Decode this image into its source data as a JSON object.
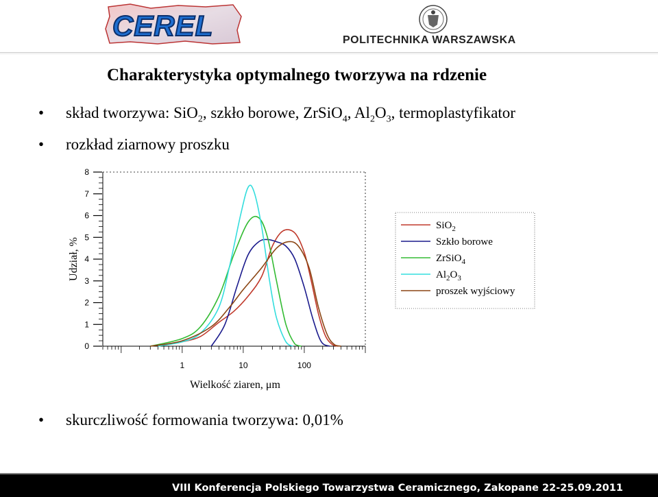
{
  "header": {
    "logo_left_text": "CEREL",
    "logo_right_text": "POLITECHNIKA WARSZAWSKA"
  },
  "slide": {
    "title": "Charakterystyka optymalnego tworzywa na rdzenie",
    "bullets": [
      {
        "text_parts": [
          "skład tworzywa: SiO",
          "2",
          ", szkło borowe, ZrSiO",
          "4",
          ", Al",
          "2",
          "O",
          "3",
          ", termoplastyfikator"
        ]
      },
      {
        "text": "rozkład ziarnowy proszku"
      },
      {
        "text": "skurczliwość formowania tworzywa: 0,01%"
      }
    ],
    "bullet_symbol": "•"
  },
  "chart_data": {
    "type": "line",
    "xlabel": "Wielkość ziaren,  μm",
    "ylabel": "Udział, %",
    "x_scale": "log",
    "xlim": [
      0.05,
      1000
    ],
    "ylim": [
      0,
      8
    ],
    "x_ticks": [
      1,
      10,
      100
    ],
    "y_ticks": [
      0,
      1,
      2,
      3,
      4,
      5,
      6,
      7,
      8
    ],
    "legend_position": "right",
    "series": [
      {
        "name": "SiO2",
        "name_parts": [
          "SiO",
          "2"
        ],
        "color": "#c0392b",
        "x": [
          0.4,
          1,
          2,
          4,
          7,
          12,
          20,
          30,
          45,
          70,
          100,
          130,
          170,
          220,
          280,
          350
        ],
        "y": [
          0,
          0.2,
          0.45,
          1.1,
          1.6,
          2.3,
          3.2,
          4.6,
          5.3,
          5.2,
          4.3,
          3.0,
          1.5,
          0.5,
          0.1,
          0
        ]
      },
      {
        "name": "Szkło borowe",
        "color": "#1a1a8c",
        "x": [
          3,
          5,
          8,
          12,
          18,
          25,
          35,
          50,
          70,
          100,
          140,
          190,
          260
        ],
        "y": [
          0,
          1.0,
          2.8,
          4.2,
          4.8,
          4.9,
          4.8,
          4.6,
          4.0,
          2.7,
          1.2,
          0.2,
          0
        ]
      },
      {
        "name": "ZrSiO4",
        "name_parts": [
          "ZrSiO",
          "4"
        ],
        "color": "#33bb33",
        "x": [
          0.3,
          1,
          2,
          4,
          7,
          12,
          18,
          25,
          35,
          50,
          70,
          90
        ],
        "y": [
          0,
          0.35,
          0.9,
          2.3,
          4.2,
          5.7,
          5.9,
          5.0,
          3.0,
          1.0,
          0.1,
          0
        ]
      },
      {
        "name": "Al2O3",
        "name_parts": [
          "Al",
          "2",
          "O",
          "3"
        ],
        "color": "#33dddd",
        "x": [
          0.4,
          1,
          2,
          4,
          6,
          9,
          12,
          15,
          20,
          27,
          35,
          50,
          65
        ],
        "y": [
          0,
          0.2,
          0.6,
          1.8,
          3.7,
          6.0,
          7.3,
          7.1,
          5.5,
          3.0,
          1.3,
          0.2,
          0
        ]
      },
      {
        "name": "proszek wyjściowy",
        "color": "#8b4513",
        "x": [
          0.3,
          1,
          3,
          6,
          10,
          20,
          35,
          55,
          80,
          120,
          170,
          240,
          320,
          400
        ],
        "y": [
          0,
          0.25,
          0.9,
          1.8,
          2.6,
          3.6,
          4.5,
          4.8,
          4.6,
          3.6,
          1.8,
          0.5,
          0.05,
          0
        ]
      }
    ]
  },
  "footer": {
    "text": "VIII Konferencja Polskiego Towarzystwa Ceramicznego, Zakopane 22-25.09.2011"
  }
}
